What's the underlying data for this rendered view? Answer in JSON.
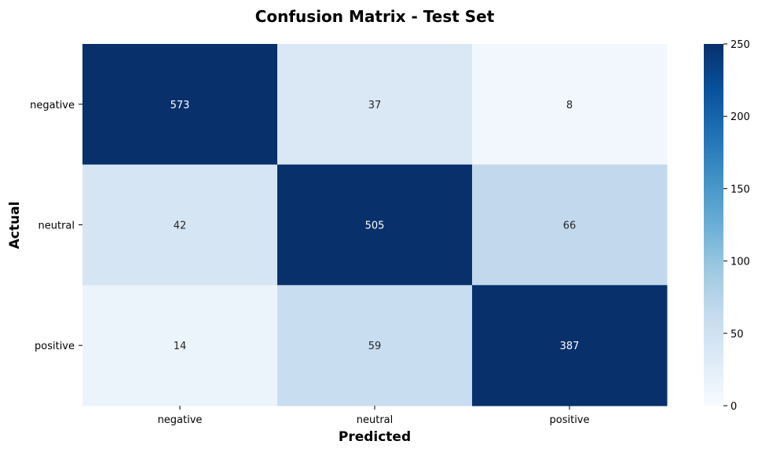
{
  "chart_data": {
    "type": "heatmap",
    "title": "Confusion Matrix - Test Set",
    "xlabel": "Predicted",
    "ylabel": "Actual",
    "x_categories": [
      "negative",
      "neutral",
      "positive"
    ],
    "y_categories": [
      "negative",
      "neutral",
      "positive"
    ],
    "values": [
      [
        573,
        37,
        8
      ],
      [
        42,
        505,
        66
      ],
      [
        14,
        59,
        387
      ]
    ],
    "colormap": "Blues",
    "color_range": [
      0,
      250
    ],
    "colorbar_ticks": [
      0,
      50,
      100,
      150,
      200,
      250
    ],
    "grid": false
  }
}
